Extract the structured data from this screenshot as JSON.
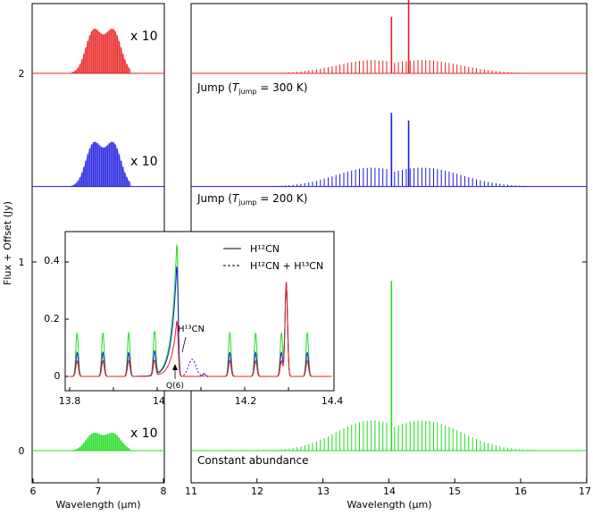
{
  "chart_data": {
    "type": "line",
    "ylabel": "Flux + Offset (Jy)",
    "y_ticks": [
      "0",
      "1",
      "2"
    ],
    "left_panel": {
      "xlabel": "Wavelength (μm)",
      "x_ticks": [
        "6",
        "7",
        "8"
      ],
      "xlim": [
        6,
        8
      ],
      "scale_label": "x 10"
    },
    "right_panel": {
      "xlabel": "Wavelength (μm)",
      "x_ticks": [
        "11",
        "12",
        "13",
        "14",
        "15",
        "16",
        "17"
      ],
      "xlim": [
        11,
        17
      ]
    },
    "series": [
      {
        "name": "Jump (T_jump = 300 K)",
        "label_main": "Jump (",
        "label_T": "T",
        "label_sub": "jump",
        "label_rest": " = 300 K)",
        "color": "#e82020",
        "offset": 2.0,
        "peak_q": 0.3,
        "peak_r": 0.42,
        "band_amp": 0.07,
        "band6_amp": 0.045
      },
      {
        "name": "Jump (T_jump = 200 K)",
        "label_main": "Jump (",
        "label_T": "T",
        "label_sub": "jump",
        "label_rest": " = 200 K)",
        "color": "#1a1ae0",
        "offset": 1.4,
        "peak_q": 0.39,
        "peak_r": 0.35,
        "band_amp": 0.1,
        "band6_amp": 0.045
      },
      {
        "name": "Constant abundance",
        "label_main": "Constant abundance",
        "color": "#22dd22",
        "offset": 0.0,
        "peak_q": 0.9,
        "peak_r": 0.0,
        "band_amp": 0.16,
        "band6_amp": 0.018
      }
    ],
    "inset": {
      "xlim": [
        13.8,
        14.4
      ],
      "ylim": [
        0,
        0.48
      ],
      "x_ticks": [
        "13.8",
        "14",
        "14.2",
        "14.4"
      ],
      "y_ticks": [
        "0",
        "0.2",
        "0.4"
      ],
      "legend": {
        "solid": "H¹²CN",
        "dashed": "H¹²CN + H¹³CN"
      },
      "annotation_h13cn": "H¹³CN",
      "annotation_q6": "Q(6)",
      "lines": [
        {
          "x": 13.817,
          "green": 0.155,
          "blue": 0.085,
          "red": 0.055
        },
        {
          "x": 13.876,
          "green": 0.155,
          "blue": 0.085,
          "red": 0.055
        },
        {
          "x": 13.935,
          "green": 0.155,
          "blue": 0.085,
          "red": 0.055
        },
        {
          "x": 13.994,
          "green": 0.155,
          "blue": 0.085,
          "red": 0.055
        },
        {
          "x": 14.107,
          "green": 0.01,
          "blue": 0.01,
          "red": 0.01
        },
        {
          "x": 14.166,
          "green": 0.155,
          "blue": 0.085,
          "red": 0.055
        },
        {
          "x": 14.225,
          "green": 0.155,
          "blue": 0.085,
          "red": 0.055
        },
        {
          "x": 14.284,
          "green": 0.155,
          "blue": 0.085,
          "red": 0.055
        },
        {
          "x": 14.343,
          "green": 0.155,
          "blue": 0.085,
          "red": 0.055
        }
      ],
      "q_branch": {
        "x": 14.045,
        "green": 0.48,
        "blue": 0.4,
        "red": 0.2
      },
      "r_line": {
        "x": 14.295,
        "green": 0.33,
        "blue": 0.33,
        "red": 0.33
      }
    }
  }
}
